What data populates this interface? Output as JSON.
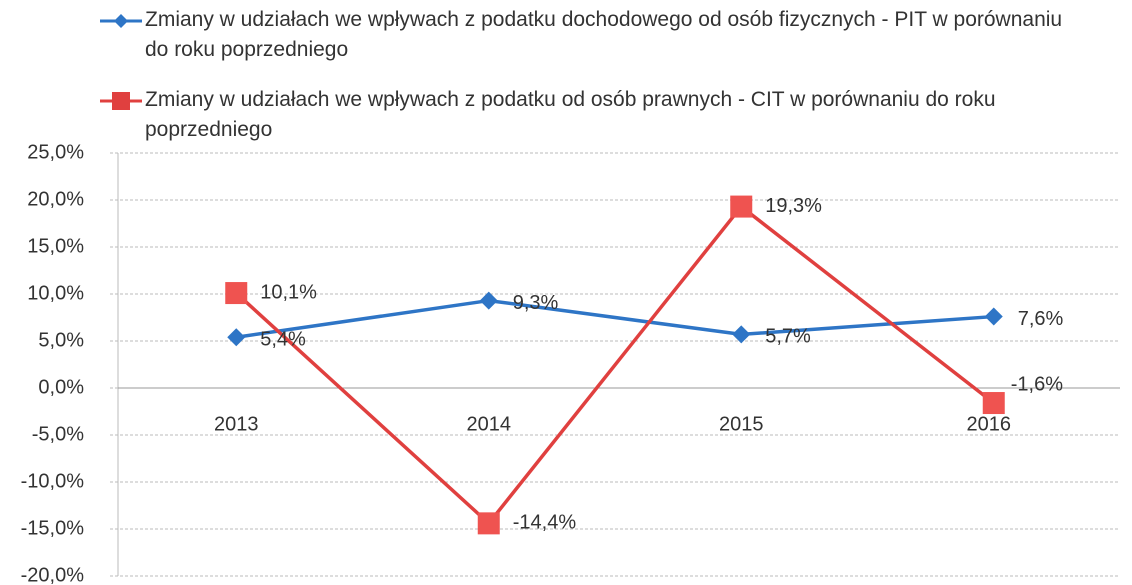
{
  "chart_data": {
    "type": "line",
    "categories": [
      "2013",
      "2014",
      "2015",
      "2016"
    ],
    "series": [
      {
        "name": "Zmiany w udziałach we wpływach z podatku dochodowego od osób fizycznych - PIT w porównaniu do roku poprzedniego",
        "color": "#2e75c6",
        "marker": "diamond",
        "values": [
          5.4,
          9.3,
          5.7,
          7.6
        ],
        "value_labels": [
          "5,4%",
          "9,3%",
          "5,7%",
          "7,6%"
        ]
      },
      {
        "name": "Zmiany w udziałach we wpływach z podatku od osób prawnych - CIT w porównaniu do roku poprzedniego",
        "color": "#e0403f",
        "marker": "square",
        "values": [
          10.1,
          -14.4,
          19.3,
          -1.6
        ],
        "value_labels": [
          "10,1%",
          "-14,4%",
          "19,3%",
          "-1,6%"
        ]
      }
    ],
    "ylim": [
      -20,
      25
    ],
    "yticks": [
      {
        "value": 25,
        "label": "25,0%"
      },
      {
        "value": 20,
        "label": "20,0%"
      },
      {
        "value": 15,
        "label": "15,0%"
      },
      {
        "value": 10,
        "label": "10,0%"
      },
      {
        "value": 5,
        "label": "5,0%"
      },
      {
        "value": 0,
        "label": "0,0%"
      },
      {
        "value": -5,
        "label": "-5,0%"
      },
      {
        "value": -10,
        "label": "-10,0%"
      },
      {
        "value": -15,
        "label": "-15,0%"
      },
      {
        "value": -20,
        "label": "-20,0%"
      }
    ],
    "grid": true,
    "legend": "top"
  }
}
